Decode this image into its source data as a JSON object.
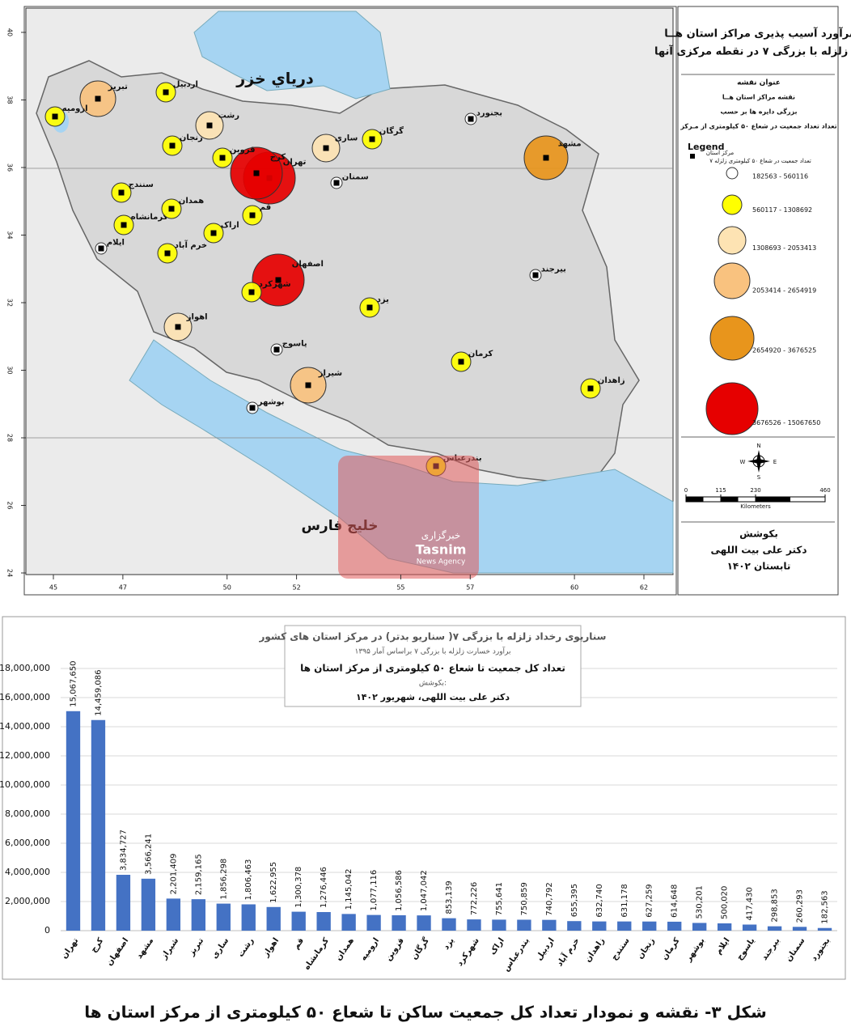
{
  "chart_data": {
    "type": "bar",
    "title": "سناریوی رخداد زلزله با بزرگی ۷( سناریو بدتر) در مرکز استان های کشور",
    "subtitle": "برآورد خسارت زلزله با بزرگی ۷ براساس آمار ۱۳۹۵",
    "annotations": [
      "تعداد کل جمعیت تا شعاع ۵۰ کیلومتری از مرکز استان ها",
      "بکوشش:",
      "دکتر علی بیت اللهی، شهریور ۱۴۰۲"
    ],
    "categories": [
      "تهران",
      "کرج",
      "اصفهان",
      "مشهد",
      "شیراز",
      "تبریز",
      "ساری",
      "رشت",
      "اهواز",
      "قم",
      "کرمانشاه",
      "همدان",
      "ارومیه",
      "قزوین",
      "گرگان",
      "یزد",
      "شهرکرد",
      "اراک",
      "بندرعباس",
      "اردبیل",
      "خرم آباد",
      "زاهدان",
      "سنندج",
      "زنجان",
      "کرمان",
      "بوشهر",
      "ایلام",
      "یاسوج",
      "بیرجند",
      "سمنان",
      "بجنورد"
    ],
    "values": [
      15067650,
      14459086,
      3834727,
      3566241,
      2201409,
      2159165,
      1856298,
      1806463,
      1622955,
      1300378,
      1276446,
      1145042,
      1077116,
      1056586,
      1047042,
      853139,
      772226,
      755641,
      750859,
      740792,
      655395,
      632740,
      631178,
      627259,
      614648,
      530201,
      500020,
      417430,
      298853,
      260293,
      182563
    ],
    "value_labels": [
      "15,067,650",
      "14,459,086",
      "3,834,727",
      "3,566,241",
      "2,201,409",
      "2,159,165",
      "1,856,298",
      "1,806,463",
      "1,622,955",
      "1,300,378",
      "1,276,446",
      "1,145,042",
      "1,077,116",
      "1,056,586",
      "1,047,042",
      "853,139",
      "772,226",
      "755,641",
      "750,859",
      "740,792",
      "655,395",
      "632,740",
      "631,178",
      "627,259",
      "614,648",
      "530,201",
      "500,020",
      "417,430",
      "298,853",
      "260,293",
      "182,563"
    ],
    "color": "#4472c4",
    "ylim": [
      0,
      18000000
    ],
    "yticks": [
      0,
      {
        "value": 2000000,
        "label": "2,000,000"
      },
      {
        "value": 4000000,
        "label": "4,000,000"
      },
      {
        "value": 6000000,
        "label": "6,000,000"
      },
      {
        "value": 8000000,
        "label": "8,000,000"
      },
      {
        "value": 10000000,
        "label": "10,000,000"
      },
      {
        "value": 12000000,
        "label": "12,000,000"
      },
      {
        "value": 14000000,
        "label": "14,000,000"
      },
      {
        "value": 16000000,
        "label": "16,000,000"
      },
      {
        "value": 18000000,
        "label": "18,000,000"
      }
    ],
    "grid": true
  },
  "map": {
    "title": [
      "برآورد آسیب پذیری مراکز استان هــا",
      "در زلزله با بزرگی ۷ در نقطه مرکزی آنها"
    ],
    "sea_labels": [
      "درياي خزر",
      "خلیج فارس"
    ],
    "legend_heading": "عنوان نقشه",
    "legend_notes": [
      "نقشه مراکز استان هــا",
      "بزرگی دایره ها بر حسب",
      "تعداد تعداد جمعیت در شعاع ۵۰ کیلومتری از مـرکز"
    ],
    "legend_title": "Legend",
    "legend_marker": [
      "مرکز استان",
      "تعداد جمعیت در شعاع ۵۰ کیلومتری زلزله ۷"
    ],
    "classes": [
      {
        "label": "182563 - 560116",
        "color": "#ffffff"
      },
      {
        "label": "560117 - 1308692",
        "color": "#ffff00"
      },
      {
        "label": "1308693 - 2053413",
        "color": "#fde3b3"
      },
      {
        "label": "2053414 - 2654919",
        "color": "#f9c27f"
      },
      {
        "label": "2654920 - 3676525",
        "color": "#e8951c"
      },
      {
        "label": "3676526 - 15067650",
        "color": "#e60000"
      }
    ],
    "xticks": [
      45,
      47,
      50,
      52,
      55,
      57,
      60,
      62
    ],
    "yticks": [
      40,
      38,
      36,
      34,
      32,
      30,
      28,
      26,
      24
    ],
    "scale": {
      "ticks": [
        0,
        115,
        230,
        460
      ],
      "unit": "Kilometers"
    },
    "compass": [
      "N",
      "E",
      "S",
      "W"
    ],
    "credits": [
      "بکوشش",
      "دکتر علی بیت اللهی",
      "تابستان ۱۴۰۲"
    ],
    "watermark": [
      "خبرگزاری",
      "Tasnim",
      "News Agency"
    ]
  },
  "caption": "شکل ۳- نقشه و نمودار تعداد کل جمعیت ساکن تا شعاع ۵۰ کیلومتری از مرکز استان ها"
}
